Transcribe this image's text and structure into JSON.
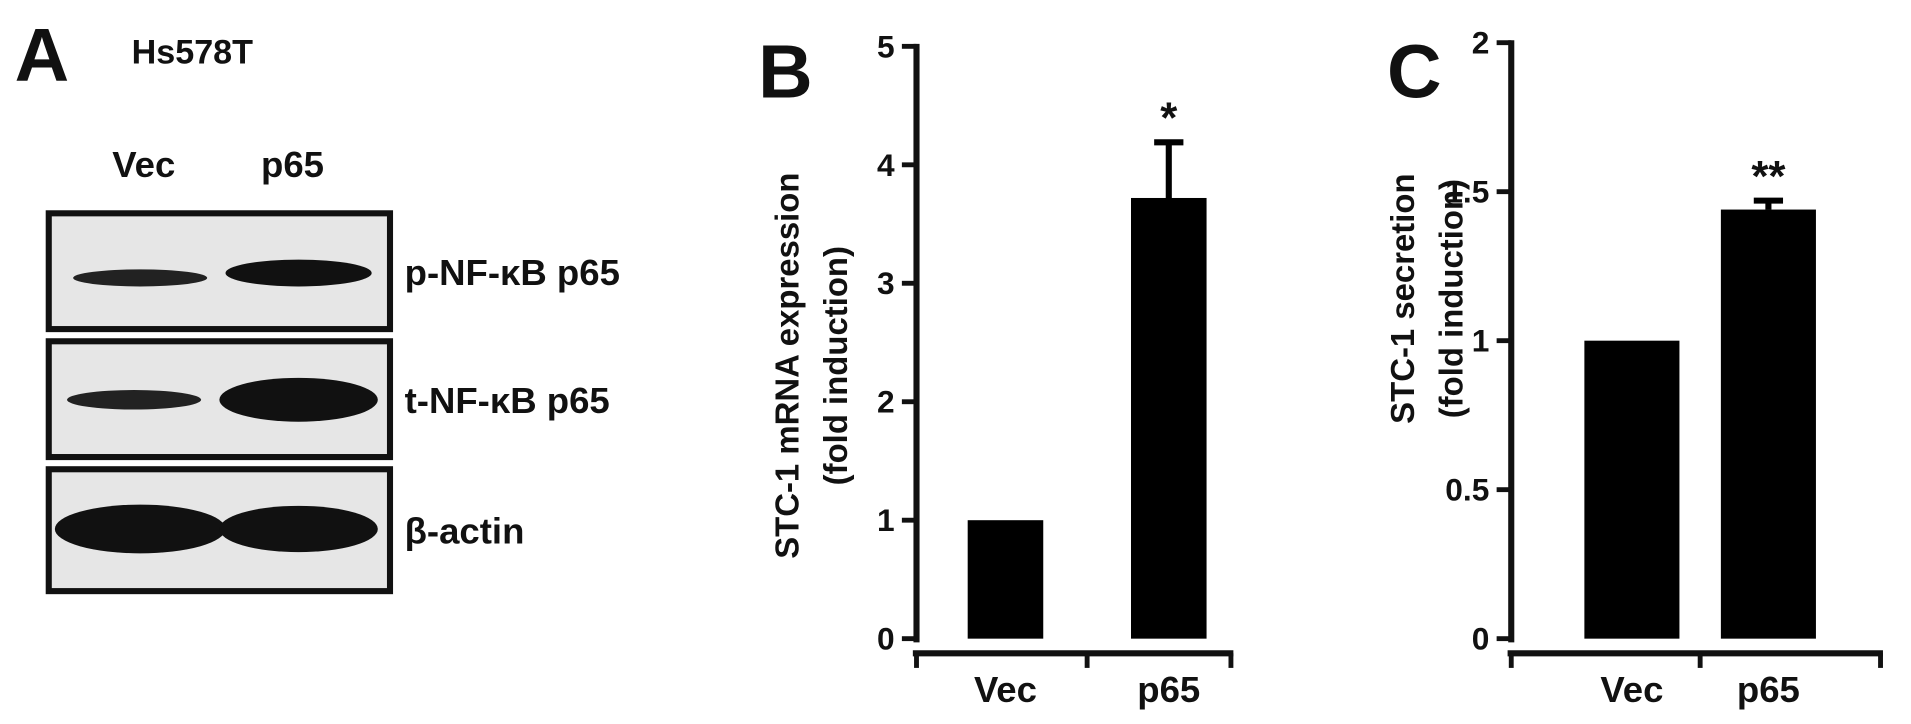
{
  "blot": {
    "panel_label": "A",
    "cell_line": "Hs578T",
    "lanes": [
      "Vec",
      "p65"
    ],
    "bands": [
      "p-NF-κB p65",
      "t-NF-κB p65",
      "β-actin"
    ]
  },
  "chart_data": [
    {
      "type": "bar",
      "panel_label": "B",
      "ylabel": [
        "STC-1 mRNA expression",
        "(fold induction)"
      ],
      "categories": [
        "Vec",
        "p65"
      ],
      "values": [
        1,
        3.72
      ],
      "errors": [
        null,
        0.47
      ],
      "annotations": [
        null,
        "*"
      ],
      "color": "#000000",
      "ylim": [
        0,
        5
      ],
      "yticks": [
        0,
        1,
        2,
        3,
        4,
        5
      ]
    },
    {
      "type": "bar",
      "panel_label": "C",
      "ylabel": [
        "STC-1 secretion",
        "(fold induction)"
      ],
      "categories": [
        "Vec",
        "p65"
      ],
      "values": [
        1,
        1.44
      ],
      "errors": [
        null,
        0.03
      ],
      "annotations": [
        null,
        "**"
      ],
      "color": "#000000",
      "ylim": [
        0,
        2
      ],
      "yticks": [
        0,
        0.5,
        1,
        1.5,
        2
      ]
    }
  ]
}
